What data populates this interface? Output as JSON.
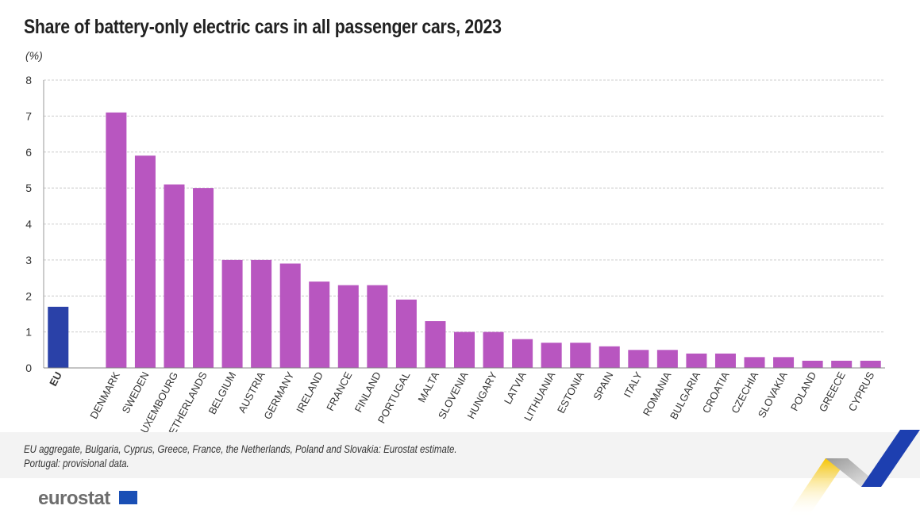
{
  "title": "Share of battery-only electric cars in all passenger cars, 2023",
  "unit": "(%)",
  "notes": [
    "EU aggregate, Bulgaria, Cyprus, Greece, France, the Netherlands, Poland and Slovakia: Eurostat estimate.",
    "Portugal: provisional data."
  ],
  "logo": "eurostat",
  "colors": {
    "eu": "#2a41a8",
    "country": "#b856c0",
    "grid": "#cccccc"
  },
  "chart_data": {
    "type": "bar",
    "title": "Share of battery-only electric cars in all passenger cars, 2023",
    "ylabel": "(%)",
    "ylim": [
      0,
      8
    ],
    "yticks": [
      0,
      1,
      2,
      3,
      4,
      5,
      6,
      7,
      8
    ],
    "grid": true,
    "categories": [
      "EU",
      "DENMARK",
      "SWEDEN",
      "LUXEMBOURG",
      "NETHERLANDS",
      "BELGIUM",
      "AUSTRIA",
      "GERMANY",
      "IRELAND",
      "FRANCE",
      "FINLAND",
      "PORTUGAL",
      "MALTA",
      "SLOVENIA",
      "HUNGARY",
      "LATVIA",
      "LITHUANIA",
      "ESTONIA",
      "SPAIN",
      "ITALY",
      "ROMANIA",
      "BULGARIA",
      "CROATIA",
      "CZECHIA",
      "SLOVAKIA",
      "POLAND",
      "GREECE",
      "CYPRUS"
    ],
    "values": [
      1.7,
      7.1,
      5.9,
      5.1,
      5.0,
      3.0,
      3.0,
      2.9,
      2.4,
      2.3,
      2.3,
      1.9,
      1.3,
      1.0,
      1.0,
      0.8,
      0.7,
      0.7,
      0.6,
      0.5,
      0.5,
      0.4,
      0.4,
      0.3,
      0.3,
      0.2,
      0.2,
      0.2
    ]
  }
}
